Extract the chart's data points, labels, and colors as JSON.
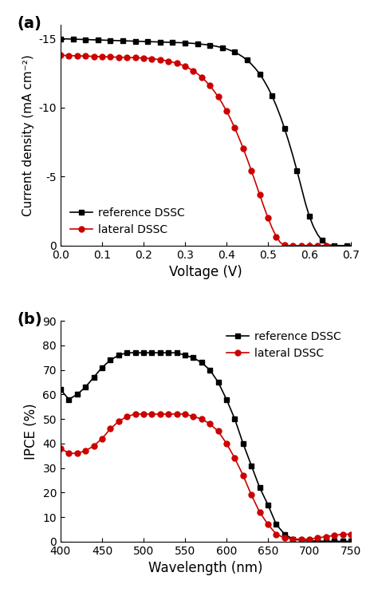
{
  "panel_a_label": "(a)",
  "panel_b_label": "(b)",
  "jv_ref_voltage": [
    0.0,
    0.01,
    0.02,
    0.03,
    0.04,
    0.05,
    0.06,
    0.07,
    0.08,
    0.09,
    0.1,
    0.11,
    0.12,
    0.13,
    0.14,
    0.15,
    0.16,
    0.17,
    0.18,
    0.19,
    0.2,
    0.21,
    0.22,
    0.23,
    0.24,
    0.25,
    0.26,
    0.27,
    0.28,
    0.29,
    0.3,
    0.31,
    0.32,
    0.33,
    0.34,
    0.35,
    0.36,
    0.37,
    0.38,
    0.39,
    0.4,
    0.41,
    0.42,
    0.43,
    0.44,
    0.45,
    0.46,
    0.47,
    0.48,
    0.49,
    0.5,
    0.51,
    0.52,
    0.53,
    0.54,
    0.55,
    0.56,
    0.57,
    0.58,
    0.59,
    0.6,
    0.61,
    0.62,
    0.63,
    0.64,
    0.65,
    0.66,
    0.67,
    0.68,
    0.69,
    0.7
  ],
  "jv_ref_current": [
    -15.0,
    -14.99,
    -14.98,
    -14.97,
    -14.96,
    -14.95,
    -14.94,
    -14.93,
    -14.92,
    -14.91,
    -14.9,
    -14.89,
    -14.88,
    -14.87,
    -14.86,
    -14.85,
    -14.84,
    -14.83,
    -14.82,
    -14.81,
    -14.8,
    -14.79,
    -14.78,
    -14.77,
    -14.76,
    -14.75,
    -14.74,
    -14.73,
    -14.72,
    -14.71,
    -14.7,
    -14.68,
    -14.66,
    -14.63,
    -14.6,
    -14.57,
    -14.53,
    -14.48,
    -14.42,
    -14.35,
    -14.26,
    -14.15,
    -14.02,
    -13.86,
    -13.67,
    -13.44,
    -13.16,
    -12.83,
    -12.44,
    -11.98,
    -11.45,
    -10.84,
    -10.14,
    -9.36,
    -8.49,
    -7.54,
    -6.52,
    -5.42,
    -4.27,
    -3.1,
    -2.1,
    -1.35,
    -0.78,
    -0.38,
    -0.13,
    -0.03,
    0.0,
    0.0,
    0.0,
    0.0,
    0.0
  ],
  "jv_lat_voltage": [
    0.0,
    0.01,
    0.02,
    0.03,
    0.04,
    0.05,
    0.06,
    0.07,
    0.08,
    0.09,
    0.1,
    0.11,
    0.12,
    0.13,
    0.14,
    0.15,
    0.16,
    0.17,
    0.18,
    0.19,
    0.2,
    0.21,
    0.22,
    0.23,
    0.24,
    0.25,
    0.26,
    0.27,
    0.28,
    0.29,
    0.3,
    0.31,
    0.32,
    0.33,
    0.34,
    0.35,
    0.36,
    0.37,
    0.38,
    0.39,
    0.4,
    0.41,
    0.42,
    0.43,
    0.44,
    0.45,
    0.46,
    0.47,
    0.48,
    0.49,
    0.5,
    0.51,
    0.52,
    0.53,
    0.54,
    0.55,
    0.56,
    0.57,
    0.58,
    0.59,
    0.6,
    0.61,
    0.62,
    0.63,
    0.64,
    0.65
  ],
  "jv_lat_current": [
    -13.8,
    -13.79,
    -13.78,
    -13.77,
    -13.76,
    -13.75,
    -13.74,
    -13.73,
    -13.72,
    -13.71,
    -13.7,
    -13.69,
    -13.68,
    -13.67,
    -13.66,
    -13.65,
    -13.64,
    -13.63,
    -13.62,
    -13.61,
    -13.6,
    -13.58,
    -13.55,
    -13.52,
    -13.48,
    -13.43,
    -13.37,
    -13.3,
    -13.22,
    -13.12,
    -13.0,
    -12.85,
    -12.67,
    -12.46,
    -12.21,
    -11.92,
    -11.59,
    -11.21,
    -10.78,
    -10.3,
    -9.76,
    -9.17,
    -8.52,
    -7.82,
    -7.07,
    -6.27,
    -5.43,
    -4.57,
    -3.69,
    -2.83,
    -2.01,
    -1.27,
    -0.65,
    -0.21,
    -0.02,
    0.0,
    0.0,
    0.0,
    0.0,
    0.0,
    0.0,
    0.0,
    0.0,
    0.0,
    0.0,
    0.0
  ],
  "ipce_wavelength": [
    400,
    410,
    420,
    430,
    440,
    450,
    460,
    470,
    480,
    490,
    500,
    510,
    520,
    530,
    540,
    550,
    560,
    570,
    580,
    590,
    600,
    610,
    620,
    630,
    640,
    650,
    660,
    670,
    680,
    690,
    700,
    710,
    720,
    730,
    740,
    750
  ],
  "ipce_ref": [
    62,
    58,
    60,
    63,
    67,
    71,
    74,
    76,
    77,
    77,
    77,
    77,
    77,
    77,
    77,
    76,
    75,
    73,
    70,
    65,
    58,
    50,
    40,
    31,
    22,
    15,
    7,
    3,
    1,
    0.5,
    0.3,
    0.2,
    0.1,
    0.1,
    0.1,
    0.1
  ],
  "ipce_lat": [
    38,
    36,
    36,
    37,
    39,
    42,
    46,
    49,
    51,
    52,
    52,
    52,
    52,
    52,
    52,
    52,
    51,
    50,
    48,
    45,
    40,
    34,
    27,
    19,
    12,
    7,
    3,
    1.5,
    1,
    1,
    1,
    1.5,
    2,
    2.5,
    3,
    3
  ],
  "ref_color": "#000000",
  "lat_color": "#cc0000",
  "jv_xlabel": "Voltage (V)",
  "jv_ylabel": "Current density (mA cm⁻²)",
  "jv_xlim": [
    0.0,
    0.7
  ],
  "jv_ylim": [
    0,
    -16
  ],
  "jv_yticks": [
    0,
    -5,
    -10,
    -15
  ],
  "jv_yticklabels": [
    "0",
    "-5",
    "-10",
    "-15"
  ],
  "jv_xticks": [
    0.0,
    0.1,
    0.2,
    0.3,
    0.4,
    0.5,
    0.6,
    0.7
  ],
  "ipce_xlabel": "Wavelength (nm)",
  "ipce_ylabel": "IPCE (%)",
  "ipce_xlim": [
    400,
    750
  ],
  "ipce_ylim": [
    0,
    90
  ],
  "ipce_yticks": [
    0,
    10,
    20,
    30,
    40,
    50,
    60,
    70,
    80,
    90
  ],
  "ipce_xticks": [
    400,
    450,
    500,
    550,
    600,
    650,
    700,
    750
  ],
  "legend_ref": "reference DSSC",
  "legend_lat": "lateral DSSC",
  "marker_ref": "s",
  "marker_lat": "o",
  "markersize_ref": 4,
  "markersize_lat": 5,
  "linewidth": 1.2,
  "markerfacecolor_ref": "#000000",
  "markerfacecolor_lat": "#cc0000"
}
